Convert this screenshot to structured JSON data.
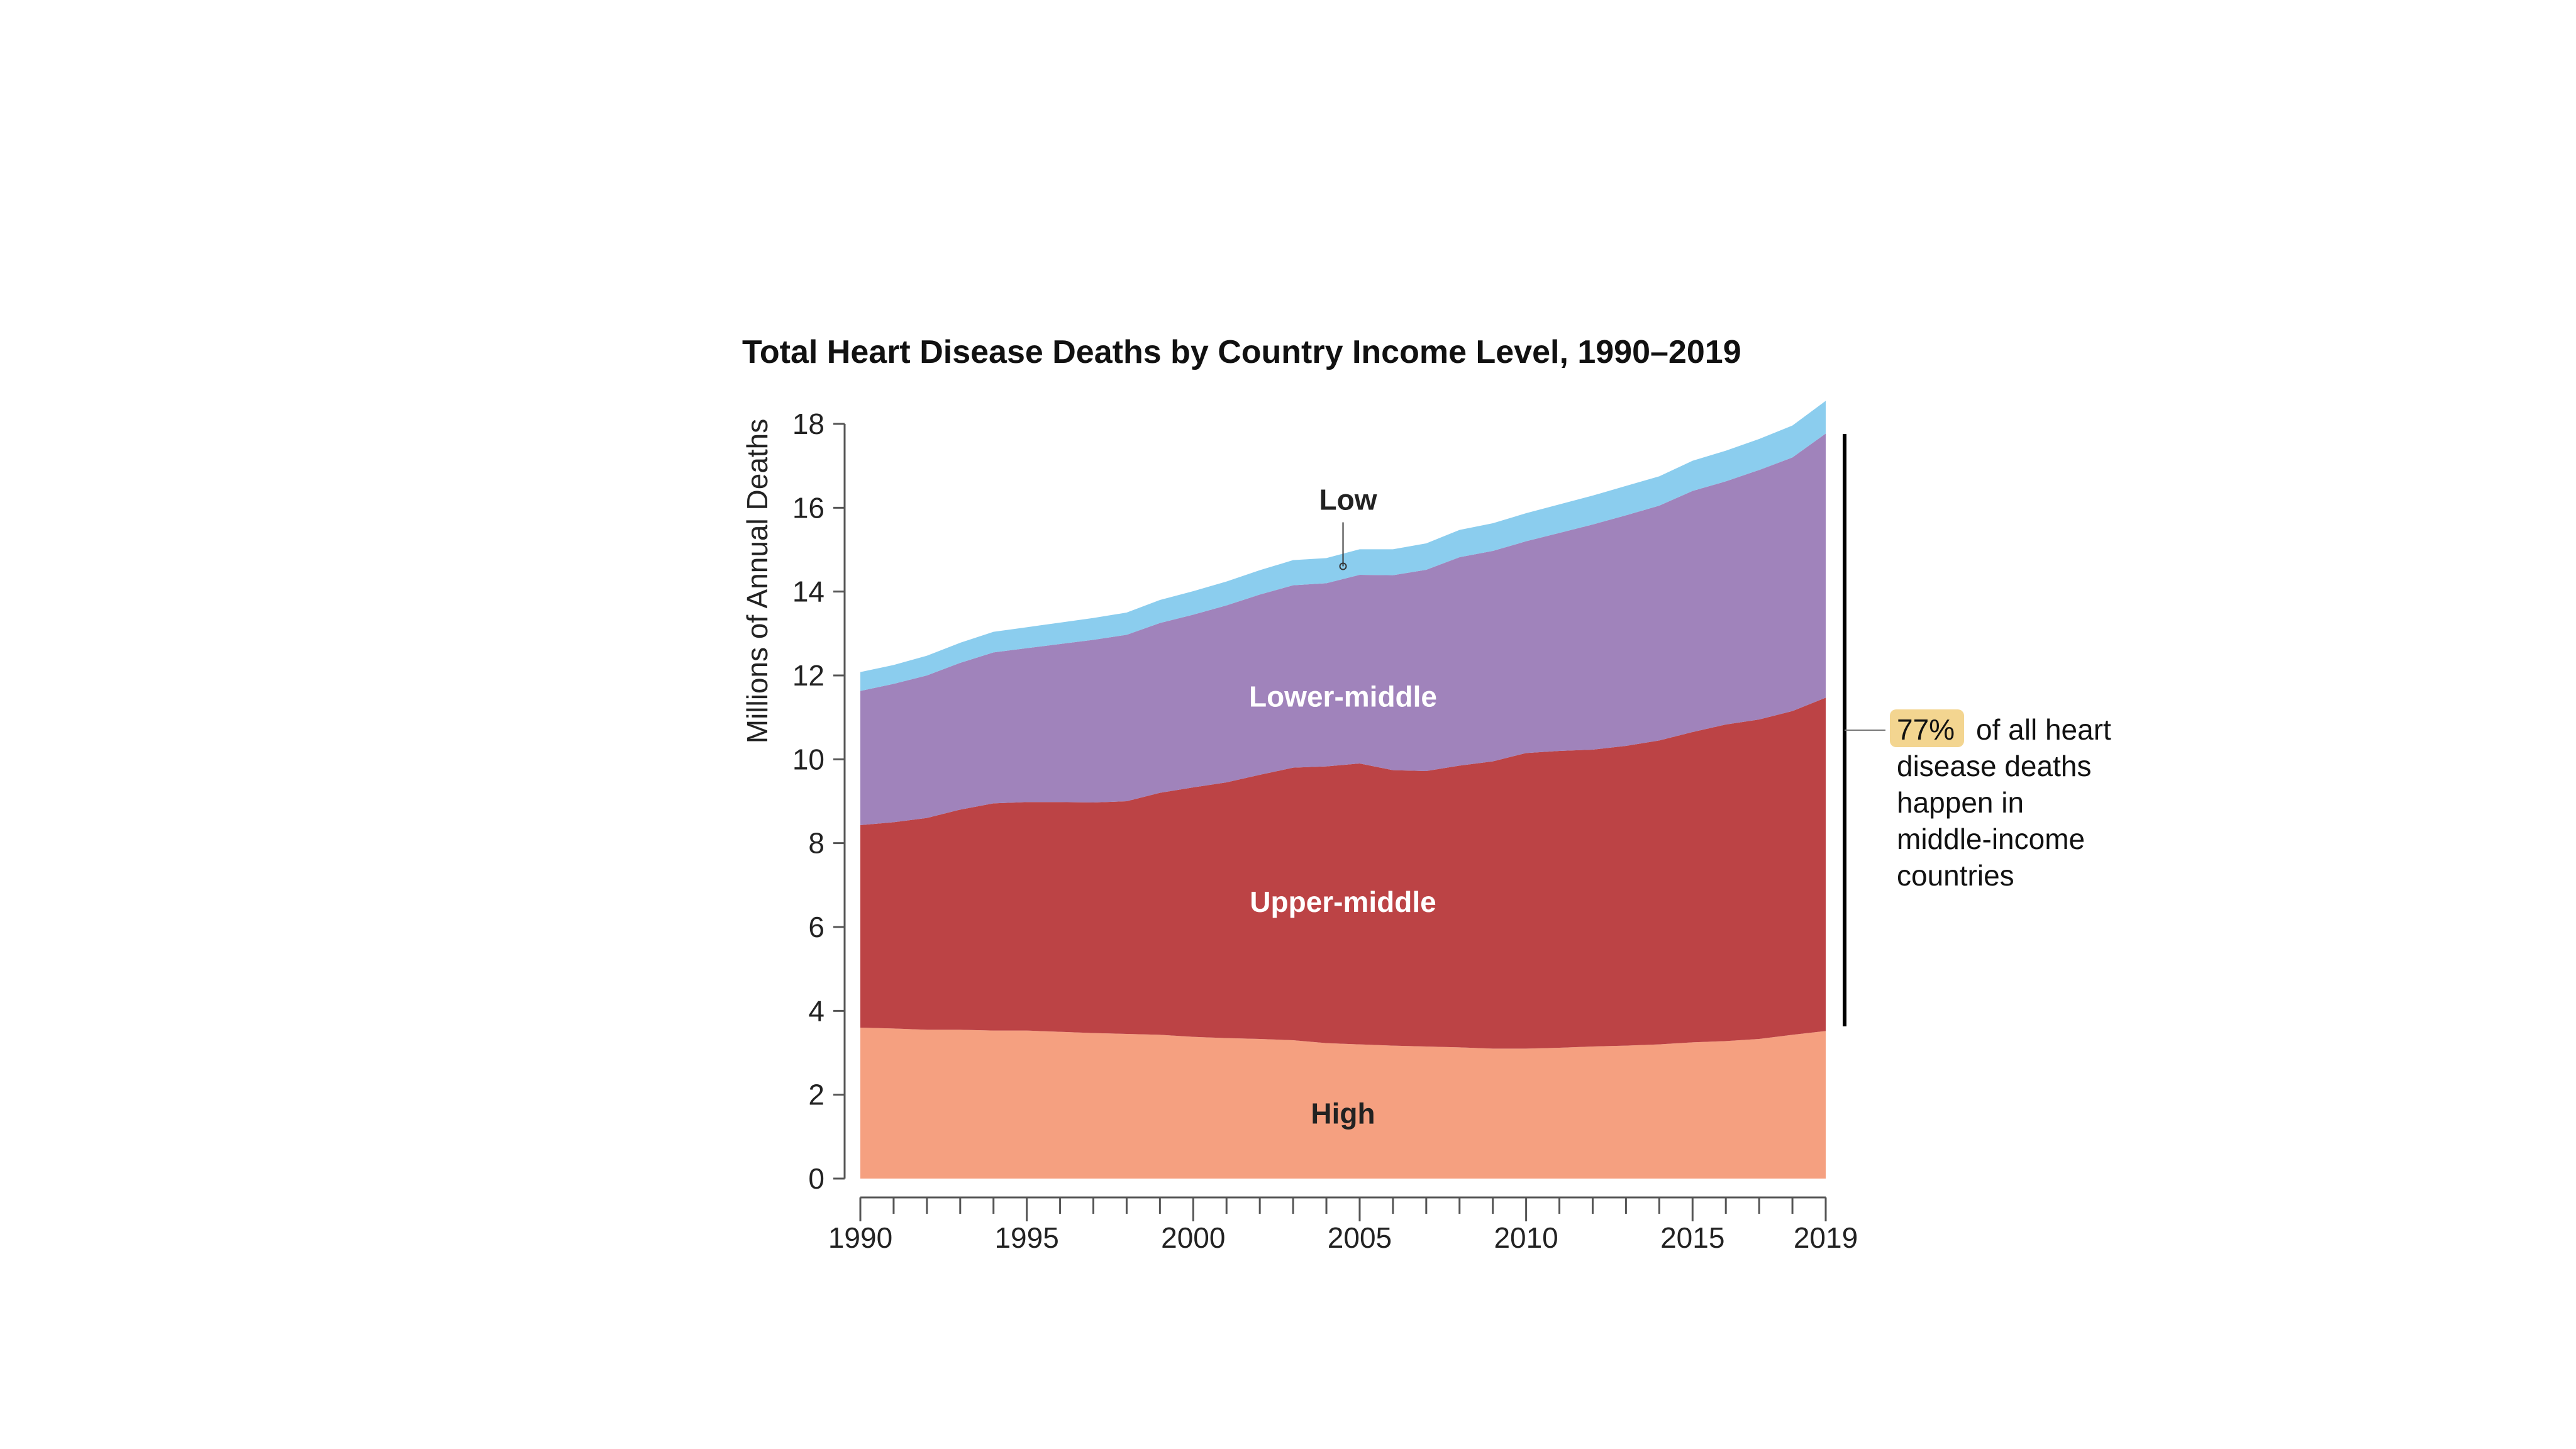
{
  "chart_data": {
    "type": "area",
    "stacked": true,
    "title": "Total Heart Disease Deaths by Country Income Level, 1990–2019",
    "ylabel": "Millions of Annual Deaths",
    "xlabel": "",
    "ylim": [
      0,
      18
    ],
    "yticks": [
      0,
      2,
      4,
      6,
      8,
      10,
      12,
      14,
      16,
      18
    ],
    "xticks": [
      1990,
      1995,
      2000,
      2005,
      2010,
      2015,
      2019
    ],
    "grid": false,
    "x": [
      1990,
      1991,
      1992,
      1993,
      1994,
      1995,
      1996,
      1997,
      1998,
      1999,
      2000,
      2001,
      2002,
      2003,
      2004,
      2005,
      2006,
      2007,
      2008,
      2009,
      2010,
      2011,
      2012,
      2013,
      2014,
      2015,
      2016,
      2017,
      2018,
      2019
    ],
    "series": [
      {
        "name": "High",
        "color": "#f5a080",
        "label_color": "#222222",
        "values": [
          3.6,
          3.58,
          3.55,
          3.55,
          3.53,
          3.53,
          3.5,
          3.47,
          3.45,
          3.43,
          3.38,
          3.35,
          3.33,
          3.3,
          3.23,
          3.2,
          3.17,
          3.15,
          3.13,
          3.1,
          3.1,
          3.12,
          3.15,
          3.17,
          3.2,
          3.25,
          3.28,
          3.33,
          3.43,
          3.52
        ]
      },
      {
        "name": "Upper-middle",
        "color": "#bc4345",
        "label_color": "#ffffff",
        "values": [
          4.83,
          4.92,
          5.05,
          5.25,
          5.42,
          5.45,
          5.48,
          5.5,
          5.55,
          5.77,
          5.95,
          6.1,
          6.3,
          6.5,
          6.6,
          6.7,
          6.57,
          6.57,
          6.72,
          6.85,
          7.05,
          7.08,
          7.08,
          7.15,
          7.25,
          7.4,
          7.55,
          7.62,
          7.72,
          7.95
        ]
      },
      {
        "name": "Lower-middle",
        "color": "#a083bb",
        "label_color": "#ffffff",
        "values": [
          3.2,
          3.3,
          3.4,
          3.5,
          3.6,
          3.67,
          3.77,
          3.88,
          3.97,
          4.05,
          4.12,
          4.22,
          4.3,
          4.35,
          4.37,
          4.5,
          4.65,
          4.8,
          4.97,
          5.02,
          5.05,
          5.2,
          5.37,
          5.5,
          5.6,
          5.75,
          5.8,
          5.95,
          6.05,
          6.3
        ]
      },
      {
        "name": "Low",
        "color": "#8bcdee",
        "label_color": "#222222",
        "values": [
          0.45,
          0.45,
          0.47,
          0.48,
          0.49,
          0.5,
          0.51,
          0.52,
          0.53,
          0.55,
          0.56,
          0.57,
          0.58,
          0.6,
          0.6,
          0.61,
          0.62,
          0.63,
          0.65,
          0.66,
          0.67,
          0.68,
          0.69,
          0.7,
          0.7,
          0.72,
          0.73,
          0.74,
          0.76,
          0.78
        ]
      }
    ],
    "annotation": {
      "pct": "77%",
      "pct_highlight_color": "#f3d590",
      "lines": [
        "of all heart",
        "disease deaths",
        "happen in",
        "middle-income",
        "countries"
      ]
    }
  }
}
